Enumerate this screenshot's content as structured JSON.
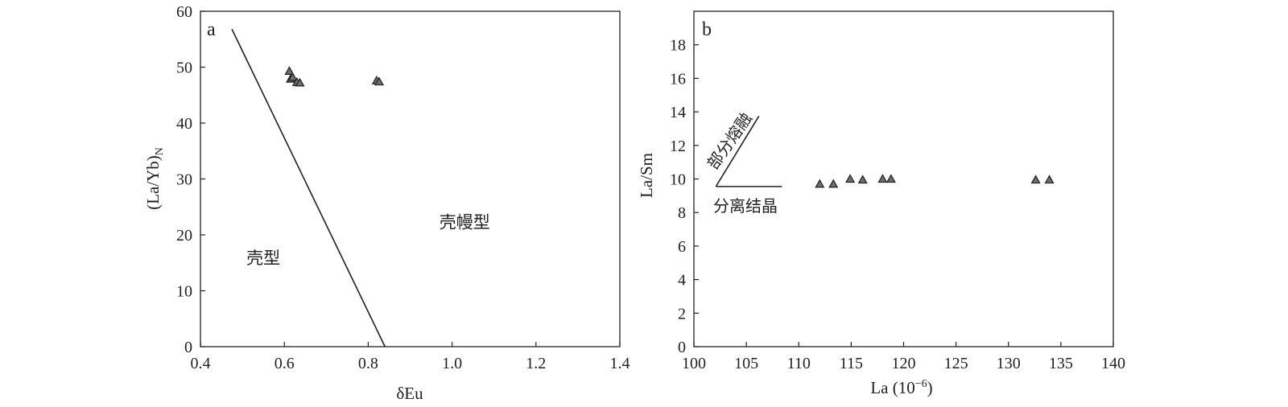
{
  "chart_data": [
    {
      "type": "scatter",
      "panel_label": "a",
      "xlabel": "δEu",
      "ylabel": "(La/Yb)",
      "ylabel_subscript": "N",
      "xlim": [
        0.4,
        1.4
      ],
      "ylim": [
        0,
        60
      ],
      "xticks": [
        0.4,
        0.6,
        0.8,
        1.0,
        1.2,
        1.4
      ],
      "xtick_labels": [
        "0.4",
        "0.6",
        "0.8",
        "1.0",
        "1.2",
        "1.4"
      ],
      "yticks": [
        0,
        10,
        20,
        30,
        40,
        50,
        60
      ],
      "ytick_labels": [
        "0",
        "10",
        "20",
        "30",
        "40",
        "50",
        "60"
      ],
      "grid": false,
      "boundary_line": [
        [
          0.475,
          56.8
        ],
        [
          0.84,
          0
        ]
      ],
      "regions": [
        {
          "label": "壳型",
          "at": [
            0.55,
            14.8
          ]
        },
        {
          "label": "壳幔型",
          "at": [
            1.03,
            21.2
          ]
        }
      ],
      "series": [
        {
          "marker": "triangle",
          "color": "#6d6e71",
          "points": [
            {
              "x": 0.612,
              "y": 49.3
            },
            {
              "x": 0.615,
              "y": 47.9
            },
            {
              "x": 0.62,
              "y": 48.2
            },
            {
              "x": 0.63,
              "y": 47.3
            },
            {
              "x": 0.637,
              "y": 47.2
            },
            {
              "x": 0.82,
              "y": 47.6
            },
            {
              "x": 0.826,
              "y": 47.4
            }
          ]
        }
      ]
    },
    {
      "type": "scatter",
      "panel_label": "b",
      "xlabel": "La (10",
      "xlabel_superscript": "−6",
      "xlabel_suffix": ")",
      "ylabel": "La/Sm",
      "xlim": [
        100,
        140
      ],
      "ylim": [
        0,
        20
      ],
      "xticks": [
        100,
        105,
        110,
        115,
        120,
        125,
        130,
        135,
        140
      ],
      "xtick_labels": [
        "100",
        "105",
        "110",
        "115",
        "120",
        "125",
        "130",
        "135",
        "140"
      ],
      "yticks": [
        0,
        2,
        4,
        6,
        8,
        10,
        12,
        14,
        16,
        18
      ],
      "ytick_labels": [
        "0",
        "2",
        "4",
        "6",
        "8",
        "10",
        "12",
        "14",
        "16",
        "18"
      ],
      "grid": false,
      "trend_lines": [
        {
          "label": "部分熔融",
          "from": [
            102.1,
            9.55
          ],
          "to": [
            106.2,
            13.75
          ]
        },
        {
          "label": "分离结晶",
          "from": [
            102.1,
            9.55
          ],
          "to": [
            108.4,
            9.55
          ]
        }
      ],
      "series": [
        {
          "marker": "triangle",
          "color": "#6d6e71",
          "points": [
            {
              "x": 112.0,
              "y": 9.7
            },
            {
              "x": 113.3,
              "y": 9.7
            },
            {
              "x": 114.9,
              "y": 10.0
            },
            {
              "x": 116.1,
              "y": 9.95
            },
            {
              "x": 118.0,
              "y": 10.0
            },
            {
              "x": 118.8,
              "y": 10.0
            },
            {
              "x": 132.6,
              "y": 9.95
            },
            {
              "x": 133.9,
              "y": 9.95
            }
          ]
        }
      ]
    }
  ]
}
